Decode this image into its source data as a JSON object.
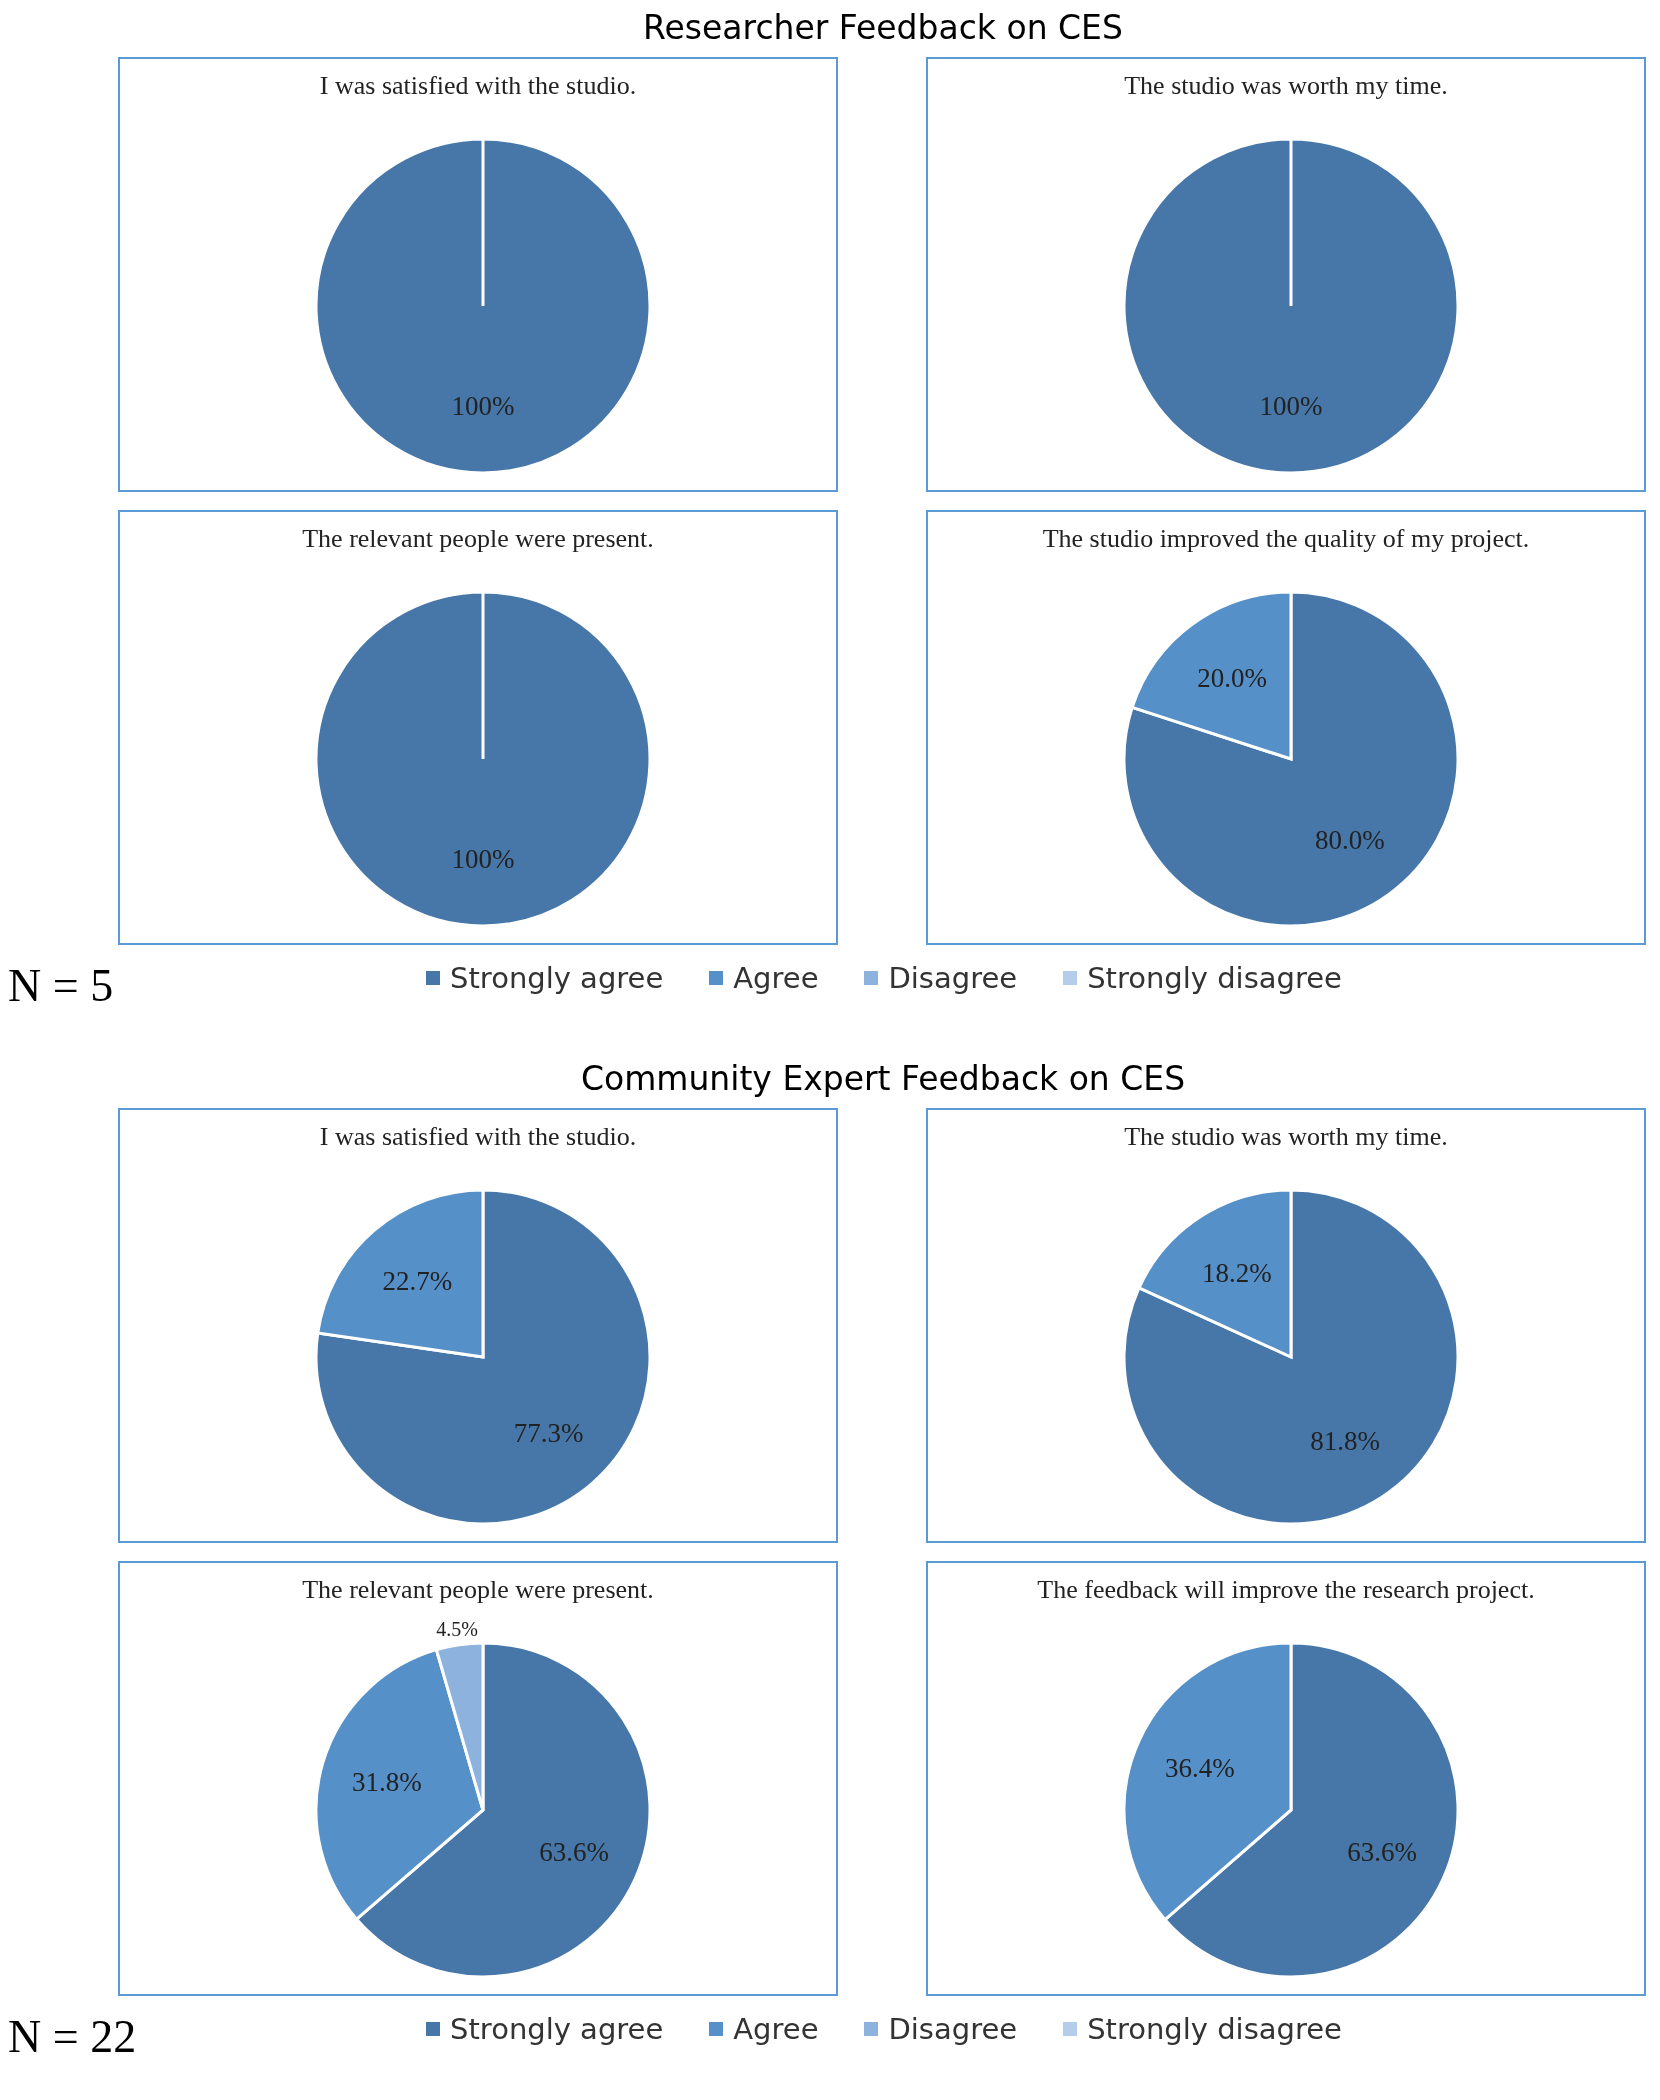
{
  "chart_data": [
    {
      "type": "pie",
      "title": "I was satisfied with the studio.",
      "annotations": [
        "Researcher Feedback on CES"
      ],
      "categories": [
        null,
        null,
        null,
        null
      ],
      "values": [
        100,
        0,
        0,
        0
      ],
      "value_labels": [
        "100%",
        null,
        null,
        null
      ],
      "colors": [
        "#4677a8",
        "#5590c8",
        "#8db2de",
        "#b4cdec"
      ]
    },
    {
      "type": "pie",
      "title": "The studio was worth my time.",
      "categories": [
        null,
        null,
        null,
        null
      ],
      "values": [
        100,
        0,
        0,
        0
      ],
      "value_labels": [
        "100%",
        null,
        null,
        null
      ],
      "colors": [
        "#4677a8",
        "#5590c8",
        "#8db2de",
        "#b4cdec"
      ]
    },
    {
      "type": "pie",
      "title": "The relevant people were present.",
      "categories": [
        null,
        null,
        null,
        null
      ],
      "values": [
        100,
        0,
        0,
        0
      ],
      "value_labels": [
        "100%",
        null,
        null,
        null
      ],
      "colors": [
        "#4677a8",
        "#5590c8",
        "#8db2de",
        "#b4cdec"
      ]
    },
    {
      "type": "pie",
      "title": "The studio improved the quality of my project.",
      "annotations": [
        "N = 5"
      ],
      "legend": "bottom",
      "categories": [
        "Strongly agree",
        "Agree",
        "Disagree",
        "Strongly disagree"
      ],
      "values": [
        80.0,
        20.0,
        0,
        0
      ],
      "value_labels": [
        "80.0%",
        "20.0%",
        null,
        null
      ],
      "colors": [
        "#4677a8",
        "#5590c8",
        "#8db2de",
        "#b4cdec"
      ]
    },
    {
      "type": "pie",
      "title": "I was satisfied with the studio.",
      "annotations": [
        "Community Expert Feedback on CES"
      ],
      "categories": [
        null,
        null,
        null,
        null
      ],
      "values": [
        77.3,
        22.7,
        0,
        0
      ],
      "value_labels": [
        "77.3%",
        "22.7%",
        null,
        null
      ],
      "colors": [
        "#4677a8",
        "#5590c8",
        "#8db2de",
        "#b4cdec"
      ]
    },
    {
      "type": "pie",
      "title": "The studio was worth my time.",
      "categories": [
        null,
        null,
        null,
        null
      ],
      "values": [
        81.8,
        18.2,
        0,
        0
      ],
      "value_labels": [
        "81.8%",
        "18.2%",
        null,
        null
      ],
      "colors": [
        "#4677a8",
        "#5590c8",
        "#8db2de",
        "#b4cdec"
      ]
    },
    {
      "type": "pie",
      "title": "The relevant people were present.",
      "categories": [
        null,
        null,
        null,
        null
      ],
      "values": [
        63.6,
        31.8,
        4.5,
        0
      ],
      "value_labels": [
        "63.6%",
        "31.8%",
        "4.5%",
        null
      ],
      "colors": [
        "#4677a8",
        "#5590c8",
        "#8db2de",
        "#b4cdec"
      ]
    },
    {
      "type": "pie",
      "title": "The feedback will improve the research project.",
      "annotations": [
        "N = 22"
      ],
      "legend": "bottom",
      "categories": [
        "Strongly agree",
        "Agree",
        "Disagree",
        "Strongly disagree"
      ],
      "values": [
        63.6,
        36.4,
        0,
        0
      ],
      "value_labels": [
        "63.6%",
        "36.4%",
        null,
        null
      ],
      "colors": [
        "#4677a8",
        "#5590c8",
        "#8db2de",
        "#b4cdec"
      ]
    }
  ]
}
